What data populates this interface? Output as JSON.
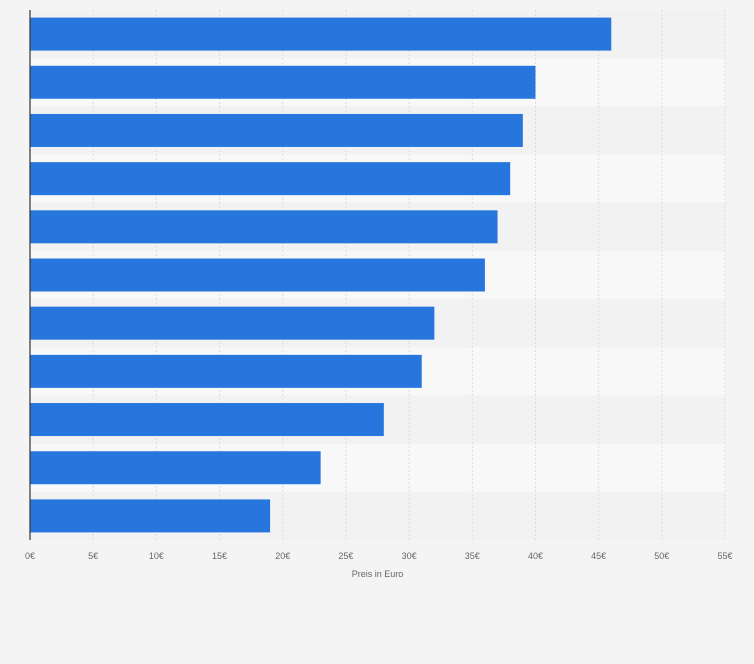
{
  "chart_data": {
    "type": "bar",
    "orientation": "horizontal",
    "categories": [
      "",
      "",
      "",
      "",
      "",
      "",
      "",
      "",
      "",
      "",
      ""
    ],
    "values": [
      46,
      40,
      39,
      38,
      37,
      36,
      32,
      31,
      28,
      23,
      19
    ],
    "title": "",
    "xlabel": "Preis in Euro",
    "ylabel": "",
    "xlim": [
      0,
      55
    ],
    "ticks": [
      0,
      5,
      10,
      15,
      20,
      25,
      30,
      35,
      40,
      45,
      50,
      55
    ],
    "tick_labels": [
      "0€",
      "5€",
      "10€",
      "15€",
      "20€",
      "25€",
      "30€",
      "35€",
      "40€",
      "45€",
      "50€",
      "55€"
    ],
    "grid": true,
    "legend": "none"
  },
  "colors": {
    "bar": "#2776dd",
    "band_a": "#f2f2f2",
    "band_b": "#f8f8f8",
    "grid": "#dcdcdc",
    "axis": "#333333",
    "text": "#666666",
    "page": "#f4f4f4"
  }
}
